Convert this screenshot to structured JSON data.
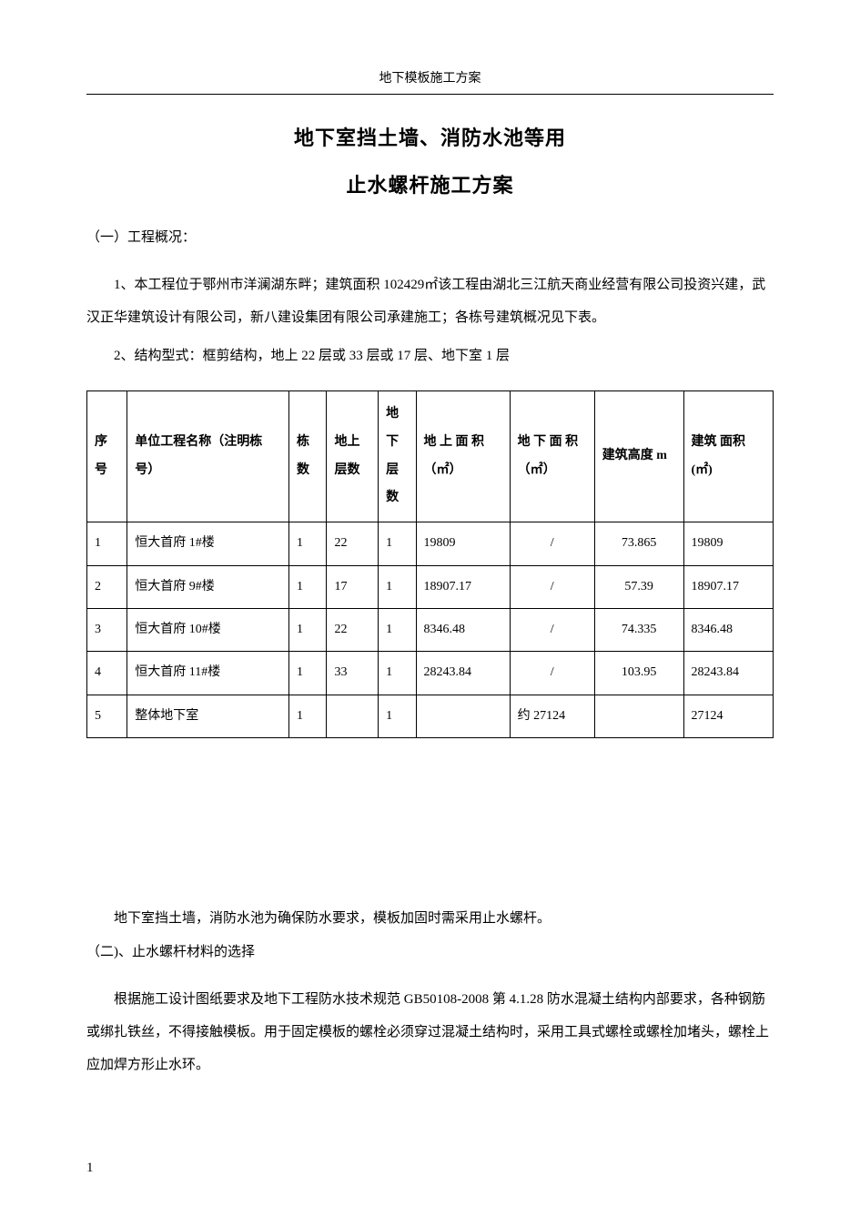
{
  "header": "地下模板施工方案",
  "title": {
    "line1": "地下室挡土墙、消防水池等用",
    "line2": "止水螺杆施工方案"
  },
  "section1": {
    "heading": "（一）工程概况：",
    "para1": "1、本工程位于鄂州市洋澜湖东畔；建筑面积 102429㎡该工程由湖北三江航天商业经营有限公司投资兴建，武汉正华建筑设计有限公司，新八建设集团有限公司承建施工；各栋号建筑概况见下表。",
    "para2": "2、结构型式：框剪结构，地上 22 层或 33 层或 17 层、地下室 1 层"
  },
  "table": {
    "columns": {
      "seq": "序号",
      "name": "单位工程名称（注明栋号）",
      "bldg_count": "栋数",
      "floors_above": "地上层数",
      "floors_below": "地下层数",
      "area_above": "地 上 面 积（㎡）",
      "area_below": "地 下 面 积（㎡）",
      "height": "建筑高度 m",
      "area_total": "建筑 面积(㎡)"
    },
    "rows": [
      {
        "seq": "1",
        "name": "恒大首府 1#楼",
        "bldg": "1",
        "above": "22",
        "below": "1",
        "area_above": "19809",
        "area_below": "/",
        "height": "73.865",
        "area_total": "19809"
      },
      {
        "seq": "2",
        "name": "恒大首府 9#楼",
        "bldg": "1",
        "above": "17",
        "below": "1",
        "area_above": "18907.17",
        "area_below": "/",
        "height": "57.39",
        "area_total": "18907.17"
      },
      {
        "seq": "3",
        "name": "恒大首府 10#楼",
        "bldg": "1",
        "above": "22",
        "below": "1",
        "area_above": "8346.48",
        "area_below": "/",
        "height": "74.335",
        "area_total": "8346.48"
      },
      {
        "seq": "4",
        "name": "恒大首府 11#楼",
        "bldg": "1",
        "above": "33",
        "below": "1",
        "area_above": "28243.84",
        "area_below": "/",
        "height": "103.95",
        "area_total": "28243.84"
      },
      {
        "seq": "5",
        "name": "整体地下室",
        "bldg": "1",
        "above": "",
        "below": "1",
        "area_above": "",
        "area_below": "约 27124",
        "height": "",
        "area_total": "27124"
      }
    ]
  },
  "section2": {
    "para_intro": "地下室挡土墙，消防水池为确保防水要求，模板加固时需采用止水螺杆。",
    "heading": "（二)、止水螺杆材料的选择",
    "para1": "根据施工设计图纸要求及地下工程防水技术规范 GB50108-2008 第 4.1.28   防水混凝土结构内部要求，各种钢筋或绑扎铁丝，不得接触模板。用于固定模板的螺栓必须穿过混凝土结构时，采用工具式螺栓或螺栓加堵头，螺栓上应加焊方形止水环。"
  },
  "page_number": "1"
}
